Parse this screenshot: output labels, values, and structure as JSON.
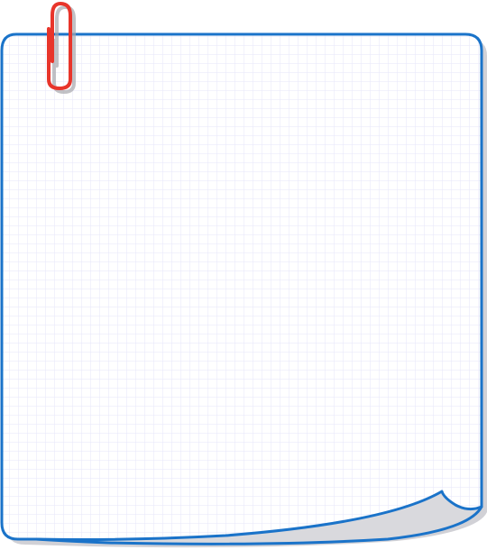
{
  "colors": {
    "background": "#ffffff",
    "paper": "#ffffff",
    "grid_line": "#e6e6fa",
    "border": "#1a73c9",
    "shadow": "#c9c9cf",
    "curl_fill": "#d9d9dd",
    "paperclip": "#e8352b",
    "paperclip_shadow": "#a7a7ad"
  },
  "icons": {
    "paperclip": "paperclip-icon"
  }
}
